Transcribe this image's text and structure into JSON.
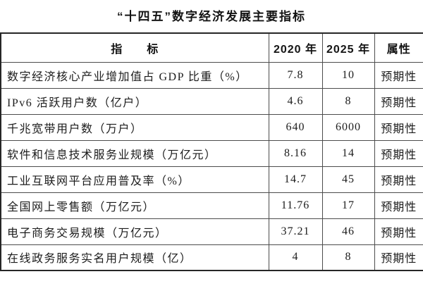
{
  "title": "“十四五”数字经济发展主要指标",
  "table": {
    "headers": {
      "indicator": "指　　标",
      "y2020": "2020 年",
      "y2025": "2025 年",
      "attr": "属性"
    },
    "rows": [
      {
        "indicator": "数字经济核心产业增加值占 GDP 比重（%）",
        "y2020": "7.8",
        "y2025": "10",
        "attr": "预期性"
      },
      {
        "indicator": "IPv6 活跃用户数（亿户）",
        "y2020": "4.6",
        "y2025": "8",
        "attr": "预期性"
      },
      {
        "indicator": "千兆宽带用户数（万户）",
        "y2020": "640",
        "y2025": "6000",
        "attr": "预期性"
      },
      {
        "indicator": "软件和信息技术服务业规模（万亿元）",
        "y2020": "8.16",
        "y2025": "14",
        "attr": "预期性"
      },
      {
        "indicator": "工业互联网平台应用普及率（%）",
        "y2020": "14.7",
        "y2025": "45",
        "attr": "预期性"
      },
      {
        "indicator": "全国网上零售额（万亿元）",
        "y2020": "11.76",
        "y2025": "17",
        "attr": "预期性"
      },
      {
        "indicator": "电子商务交易规模（万亿元）",
        "y2020": "37.21",
        "y2025": "46",
        "attr": "预期性"
      },
      {
        "indicator": "在线政务服务实名用户规模（亿）",
        "y2020": "4",
        "y2025": "8",
        "attr": "预期性"
      }
    ]
  }
}
